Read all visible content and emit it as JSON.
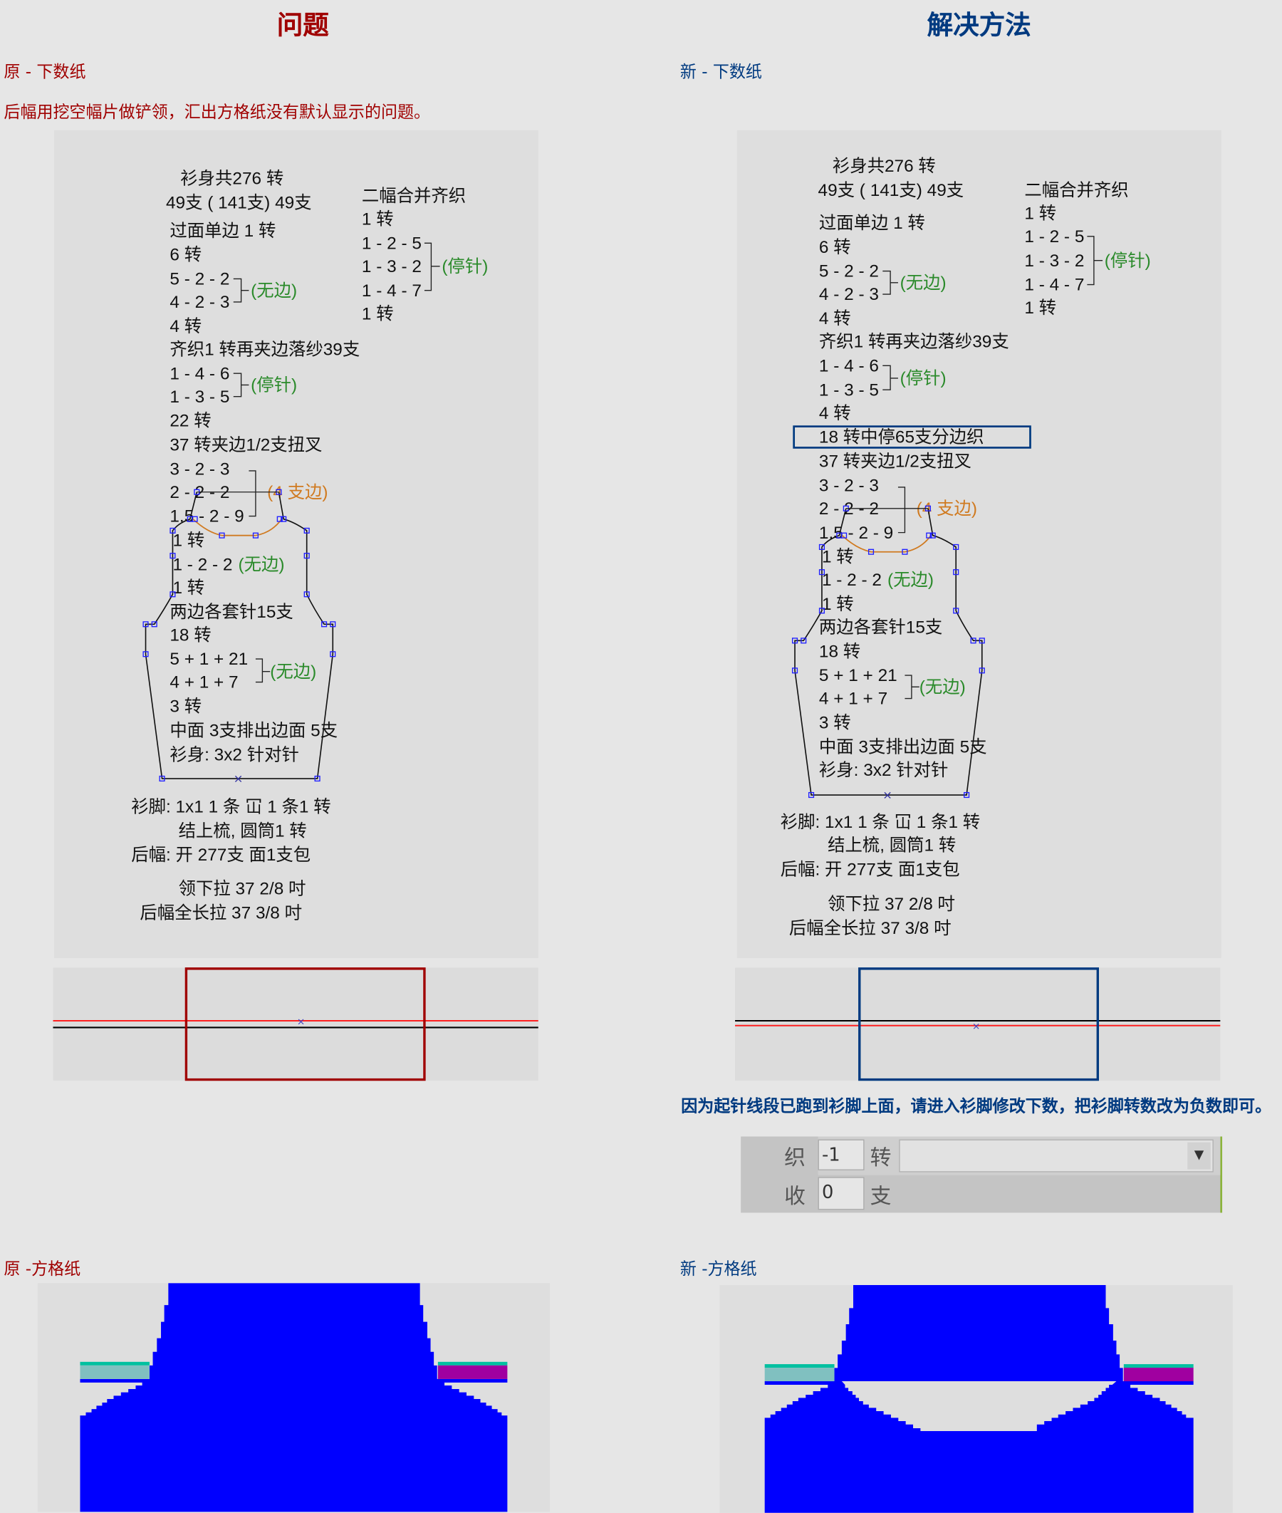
{
  "header": {
    "problem_title": "问题",
    "solution_title": "解决方法"
  },
  "left": {
    "section_label": "原 - 下数纸",
    "description": "后幅用挖空幅片做铲领，汇出方格纸没有默认显示的问题。",
    "diagram": {
      "lines": [
        "衫身共276 转",
        "49支 ( 141支) 49支",
        "过面单边 1 转",
        "6 转",
        "5 - 2 - 2",
        "4 - 2 - 3",
        "4 转",
        "齐织1 转再夹边落纱39支",
        "1 - 4 - 6",
        "1 - 3 - 5",
        "22 转",
        "37 转夹边1/2支扭叉",
        "3 - 2 - 3",
        "2 - 2 - 2",
        "1.5 - 2 - 9",
        "1 转",
        "1 - 2 - 2",
        "1 转",
        "两边各套针15支",
        "18 转",
        "5 + 1 + 21",
        "4 + 1 + 7",
        "3 转",
        "中面 3支排出边面 5支",
        "衫身: 3x2  针对针"
      ],
      "annotations": [
        "(无边)",
        "(停针)",
        "(4 支边)",
        "(无边)",
        "(无边)"
      ],
      "side": [
        "二幅合并齐织",
        "1 转",
        "1 - 2 - 5",
        "1 - 3 - 2",
        "1 - 4 - 7",
        "1 转",
        "(停针)"
      ],
      "footer": [
        "衫脚: 1x1     1 条 冚 1 条1 转",
        "结上梳, 圆筒1 转",
        "后幅: 开 277支 面1支包",
        "领下拉 37 2/8 吋",
        "后幅全长拉 37 3/8 吋"
      ]
    },
    "grid_label": "原 -方格纸"
  },
  "right": {
    "section_label": "新 - 下数纸",
    "diagram": {
      "lines": [
        "衫身共276 转",
        "49支 ( 141支) 49支",
        "过面单边 1 转",
        "6 转",
        "5 - 2 - 2",
        "4 - 2 - 3",
        "4 转",
        "齐织1 转再夹边落纱39支",
        "1 - 4 - 6",
        "1 - 3 - 5",
        "4 转",
        "18 转中停65支分边织",
        "37 转夹边1/2支扭叉",
        "3 - 2 - 3",
        "2 - 2 - 2",
        "1.5 - 2 - 9",
        "1 转",
        "1 - 2 - 2",
        "1 转",
        "两边各套针15支",
        "18 转",
        "5 + 1 + 21",
        "4 + 1 + 7",
        "3 转",
        "中面 3支排出边面 5支",
        "衫身: 3x2  针对针"
      ],
      "annotations": [
        "(无边)",
        "(停针)",
        "(4 支边)",
        "(无边)",
        "(无边)"
      ],
      "side": [
        "二幅合并齐织",
        "1 转",
        "1 - 2 - 5",
        "1 - 3 - 2",
        "1 - 4 - 7",
        "1 转",
        "(停针)"
      ],
      "footer": [
        "衫脚: 1x1     1 条 冚 1 条1 转",
        "结上梳, 圆筒1 转",
        "后幅: 开 277支 面1支包",
        "领下拉 37 2/8 吋",
        "后幅全长拉 37 3/8 吋"
      ]
    },
    "note": "因为起针线段已跑到衫脚上面，请进入衫脚修改下数，把衫脚转数改为负数即可。",
    "form": {
      "knit_label": "织",
      "knit_value": "-1",
      "knit_unit": "转",
      "select_value": "",
      "dec_label": "收",
      "dec_value": "0",
      "dec_unit": "支"
    },
    "grid_label": "新 -方格纸"
  },
  "colors": {
    "problem": "#a00000",
    "solution": "#003a80",
    "grid_fill": "#0000ff",
    "teal": "#00c0a0",
    "light_teal": "#80c0c0",
    "purple": "#a000a0",
    "neck_curve": "#d07a20",
    "annotation_green": "#2a8a2a"
  }
}
